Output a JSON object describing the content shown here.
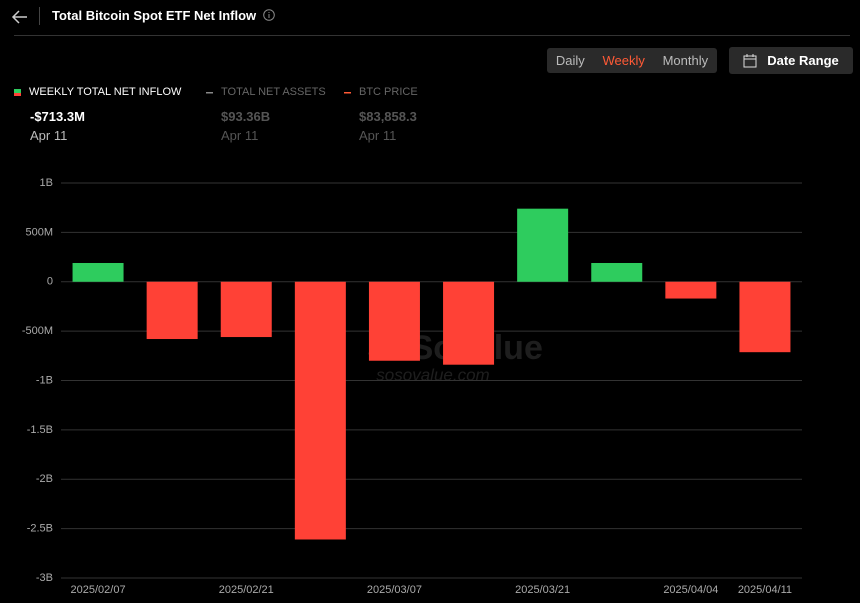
{
  "header": {
    "title": "Total Bitcoin Spot ETF Net Inflow"
  },
  "tabs": {
    "items": [
      "Daily",
      "Weekly",
      "Monthly"
    ],
    "active": 1
  },
  "date_range": "Date Range",
  "legend": [
    {
      "name": "WEEKLY TOTAL NET INFLOW",
      "value": "-$713.3M",
      "date": "Apr 11",
      "color": "#2ecc5e"
    },
    {
      "name": "TOTAL NET ASSETS",
      "value": "$93.36B",
      "date": "Apr 11",
      "color": "#888888"
    },
    {
      "name": "BTC PRICE",
      "value": "$83,858.3",
      "date": "Apr 11",
      "color": "#ff5a36"
    }
  ],
  "watermark": {
    "brand": "SoSoValue",
    "site": "sosovalue.com"
  },
  "chart_data": {
    "type": "bar",
    "categories": [
      "2025/02/07",
      null,
      "2025/02/21",
      null,
      "2025/03/07",
      null,
      "2025/03/21",
      null,
      "2025/04/04",
      "2025/04/11"
    ],
    "values": [
      190,
      -580,
      -560,
      -2610,
      -800,
      -840,
      740,
      190,
      -170,
      -713.3
    ],
    "positive_color": "#2ecc5e",
    "negative_color": "#ff4136",
    "ylim": [
      -3000,
      1000
    ],
    "yticks": [
      {
        "value": -3000,
        "label": "-3B"
      },
      {
        "value": -2500,
        "label": "-2.5B"
      },
      {
        "value": -2000,
        "label": "-2B"
      },
      {
        "value": -1500,
        "label": "-1.5B"
      },
      {
        "value": -1000,
        "label": "-1B"
      },
      {
        "value": -500,
        "label": "-500M"
      },
      0,
      {
        "value": 500,
        "label": "500M"
      },
      {
        "value": 1000,
        "label": "1B"
      }
    ],
    "grid": true
  }
}
